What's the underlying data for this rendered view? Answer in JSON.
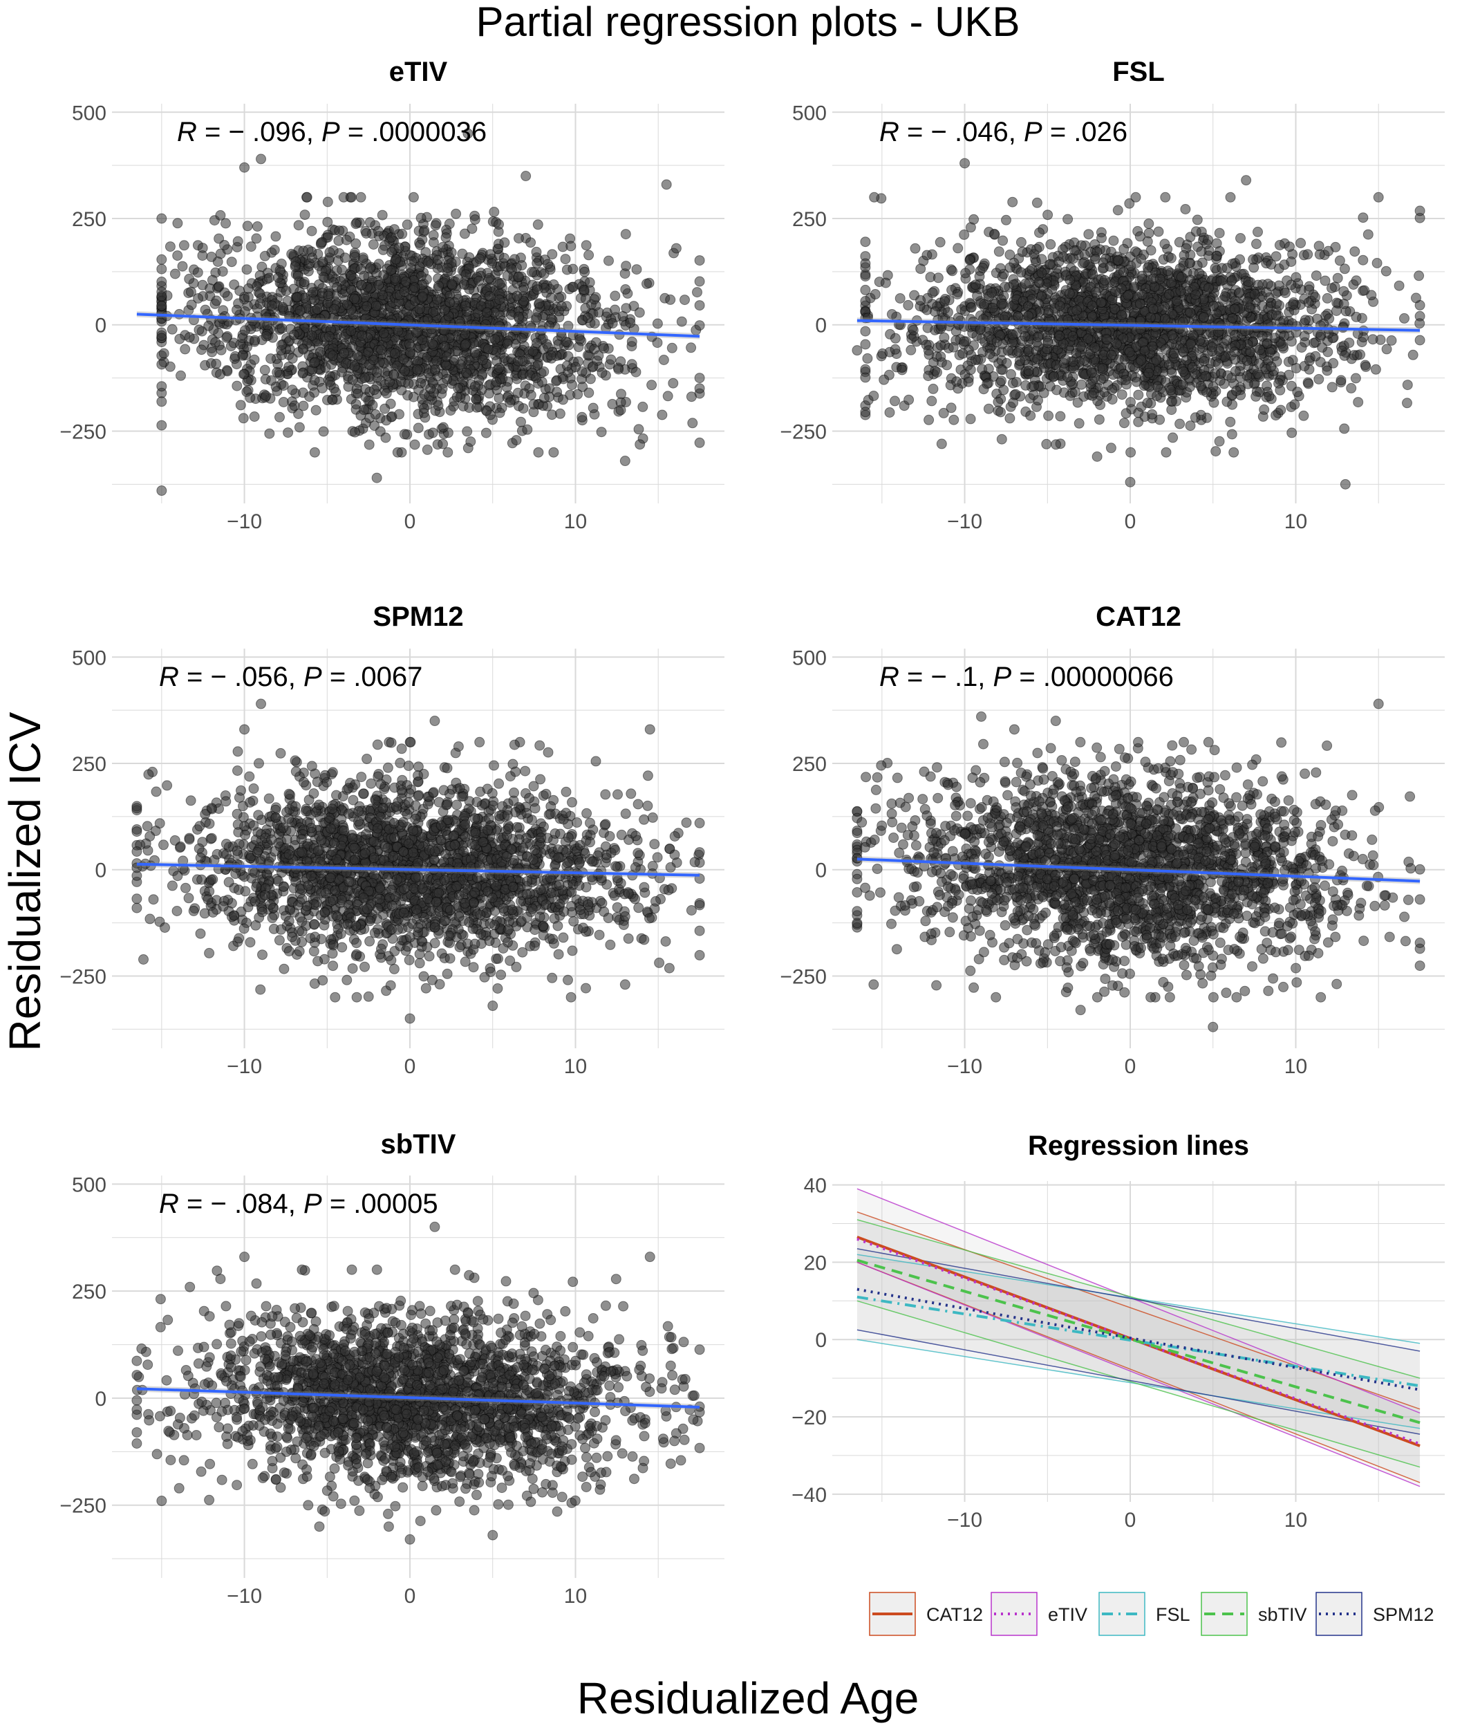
{
  "figure": {
    "title": "Partial regression plots - UKB",
    "xlabel": "Residualized Age",
    "ylabel": "Residualized ICV"
  },
  "colors": {
    "point": "#333333",
    "fit_line": "#3366ff",
    "grid": "#d9d9d9",
    "CAT12": "#cc4a1f",
    "eTIV": "#b833cc",
    "FSL": "#3db8c2",
    "sbTIV": "#4cc24c",
    "SPM12": "#24338a"
  },
  "chart_data": [
    {
      "type": "scatter",
      "title": "eTIV",
      "annotation": {
        "r_label": "R",
        "r_value": "= − .096,",
        "p_label": "P",
        "p_value": "= .0000036"
      },
      "n_points_approx": 2300,
      "x_sd": 6.5,
      "y_sd": 110,
      "x_range": [
        -15,
        17.5
      ],
      "outliers": [
        [
          -15,
          -390
        ],
        [
          -9,
          390
        ],
        [
          -10,
          370
        ],
        [
          3.5,
          450
        ],
        [
          7,
          350
        ],
        [
          15.5,
          330
        ],
        [
          -2,
          -360
        ],
        [
          13,
          -320
        ]
      ],
      "fit": {
        "x": [
          -16.5,
          17.5
        ],
        "y": [
          25,
          -27
        ]
      },
      "xlim": [
        -18,
        19
      ],
      "ylim": [
        -420,
        520
      ],
      "xticks": [
        -10,
        0,
        10
      ],
      "yticks": [
        -250,
        0,
        250,
        500
      ],
      "grid": true
    },
    {
      "type": "scatter",
      "title": "FSL",
      "annotation": {
        "r_label": "R",
        "r_value": "= − .046,",
        "p_label": "P",
        "p_value": "= .026"
      },
      "n_points_approx": 2300,
      "x_sd": 6.5,
      "y_sd": 100,
      "x_range": [
        -16,
        17.5
      ],
      "outliers": [
        [
          -10,
          380
        ],
        [
          0,
          -370
        ],
        [
          13,
          -375
        ],
        [
          7,
          340
        ],
        [
          15,
          300
        ],
        [
          -2,
          -310
        ],
        [
          -16.5,
          -60
        ]
      ],
      "fit": {
        "x": [
          -16.5,
          17.5
        ],
        "y": [
          10,
          -13
        ]
      },
      "xlim": [
        -18,
        19
      ],
      "ylim": [
        -420,
        520
      ],
      "xticks": [
        -10,
        0,
        10
      ],
      "yticks": [
        -250,
        0,
        250,
        500
      ],
      "grid": true
    },
    {
      "type": "scatter",
      "title": "SPM12",
      "annotation": {
        "r_label": "R",
        "r_value": "= − .056,",
        "p_label": "P",
        "p_value": "= .0067"
      },
      "n_points_approx": 2300,
      "x_sd": 6.5,
      "y_sd": 100,
      "x_range": [
        -16.5,
        17.5
      ],
      "outliers": [
        [
          -9,
          390
        ],
        [
          -10,
          330
        ],
        [
          1.5,
          350
        ],
        [
          14.5,
          330
        ],
        [
          0,
          -350
        ],
        [
          5,
          -320
        ],
        [
          13,
          -270
        ],
        [
          -16.5,
          -90
        ]
      ],
      "fit": {
        "x": [
          -16.5,
          17.5
        ],
        "y": [
          13,
          -13
        ]
      },
      "xlim": [
        -18,
        19
      ],
      "ylim": [
        -420,
        520
      ],
      "xticks": [
        -10,
        0,
        10
      ],
      "yticks": [
        -250,
        0,
        250,
        500
      ],
      "grid": true
    },
    {
      "type": "scatter",
      "title": "CAT12",
      "annotation": {
        "r_label": "R",
        "r_value": "= − .1,",
        "p_label": "P",
        "p_value": "= .00000066"
      },
      "n_points_approx": 2300,
      "x_sd": 6.5,
      "y_sd": 110,
      "x_range": [
        -16.5,
        17.5
      ],
      "outliers": [
        [
          -9,
          360
        ],
        [
          -7,
          330
        ],
        [
          -4.5,
          350
        ],
        [
          15,
          390
        ],
        [
          5,
          -370
        ],
        [
          -3,
          -330
        ],
        [
          -15.5,
          -270
        ],
        [
          17.5,
          -70
        ]
      ],
      "fit": {
        "x": [
          -16.5,
          17.5
        ],
        "y": [
          25,
          -27
        ]
      },
      "xlim": [
        -18,
        19
      ],
      "ylim": [
        -420,
        520
      ],
      "xticks": [
        -10,
        0,
        10
      ],
      "yticks": [
        -250,
        0,
        250,
        500
      ],
      "grid": true
    },
    {
      "type": "scatter",
      "title": "sbTIV",
      "annotation": {
        "r_label": "R",
        "r_value": "= − .084,",
        "p_label": "P",
        "p_value": "= .00005"
      },
      "n_points_approx": 2300,
      "x_sd": 6.5,
      "y_sd": 100,
      "x_range": [
        -16.5,
        17.5
      ],
      "outliers": [
        [
          1.5,
          400
        ],
        [
          -10,
          330
        ],
        [
          14.5,
          330
        ],
        [
          0,
          -330
        ],
        [
          5,
          -320
        ],
        [
          -15,
          -240
        ],
        [
          -16.5,
          -80
        ]
      ],
      "fit": {
        "x": [
          -16.5,
          17.5
        ],
        "y": [
          22,
          -21
        ]
      },
      "xlim": [
        -18,
        19
      ],
      "ylim": [
        -420,
        520
      ],
      "xticks": [
        -10,
        0,
        10
      ],
      "yticks": [
        -250,
        0,
        250,
        500
      ],
      "grid": true
    },
    {
      "type": "line",
      "title": "Regression lines",
      "x": [
        -16.5,
        17.5
      ],
      "series": [
        {
          "name": "CAT12",
          "dash": "solid",
          "y": [
            26.5,
            -27.5
          ],
          "ci_low": [
            20,
            -37
          ],
          "ci_high": [
            33,
            -18
          ]
        },
        {
          "name": "eTIV",
          "dash": "dotted",
          "y": [
            26,
            -27
          ],
          "ci_low": [
            20,
            -38
          ],
          "ci_high": [
            39,
            -19
          ]
        },
        {
          "name": "FSL",
          "dash": "dashdot",
          "y": [
            11,
            -12
          ],
          "ci_low": [
            0,
            -23
          ],
          "ci_high": [
            22,
            -1
          ]
        },
        {
          "name": "sbTIV",
          "dash": "dashed",
          "y": [
            20.5,
            -21.5
          ],
          "ci_low": [
            10,
            -33
          ],
          "ci_high": [
            31,
            -10
          ]
        },
        {
          "name": "SPM12",
          "dash": "dotted",
          "y": [
            13,
            -13
          ],
          "ci_low": [
            2.5,
            -24.5
          ],
          "ci_high": [
            23.5,
            -3
          ]
        }
      ],
      "xlim": [
        -18,
        19
      ],
      "ylim": [
        -42,
        41
      ],
      "xticks": [
        -10,
        0,
        10
      ],
      "yticks": [
        -40,
        -20,
        0,
        20,
        40
      ],
      "grid": true,
      "legend": "bottom"
    }
  ]
}
